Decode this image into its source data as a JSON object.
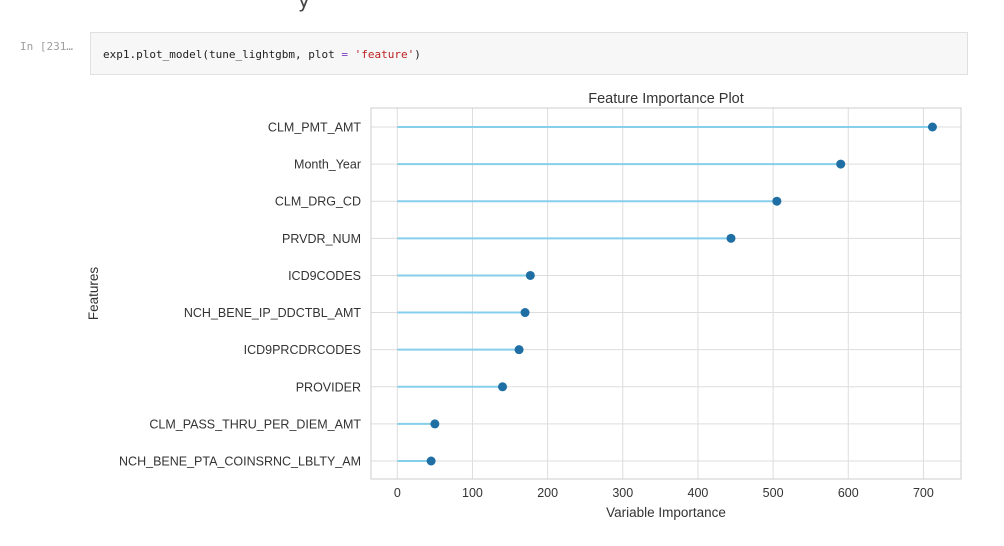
{
  "top_partial_text": "y",
  "cell": {
    "prompt": "In [231…",
    "code_prefix": "exp1.plot_model(tune_lightgbm, plot ",
    "code_op": "=",
    "code_space": " ",
    "code_string": "'feature'",
    "code_suffix": ")"
  },
  "chart_data": {
    "type": "lollipop",
    "orientation": "horizontal",
    "title": "Feature Importance Plot",
    "xlabel": "Variable Importance",
    "ylabel": "Features",
    "xlim": [
      -35,
      750
    ],
    "xticks": [
      0,
      100,
      200,
      300,
      400,
      500,
      600,
      700
    ],
    "grid": true,
    "categories": [
      "CLM_PMT_AMT",
      "Month_Year",
      "CLM_DRG_CD",
      "PRVDR_NUM",
      "ICD9CODES",
      "NCH_BENE_IP_DDCTBL_AMT",
      "ICD9PRCDRCODES",
      "PROVIDER",
      "CLM_PASS_THRU_PER_DIEM_AMT",
      "NCH_BENE_PTA_COINSRNC_LBLTY_AM"
    ],
    "values": [
      712,
      590,
      505,
      444,
      177,
      170,
      162,
      140,
      50,
      45
    ],
    "colors": {
      "stem": "#87ceeb",
      "marker": "#1f6fa5",
      "grid": "#dddddd",
      "frame": "#cccccc",
      "text": "#333333"
    }
  }
}
